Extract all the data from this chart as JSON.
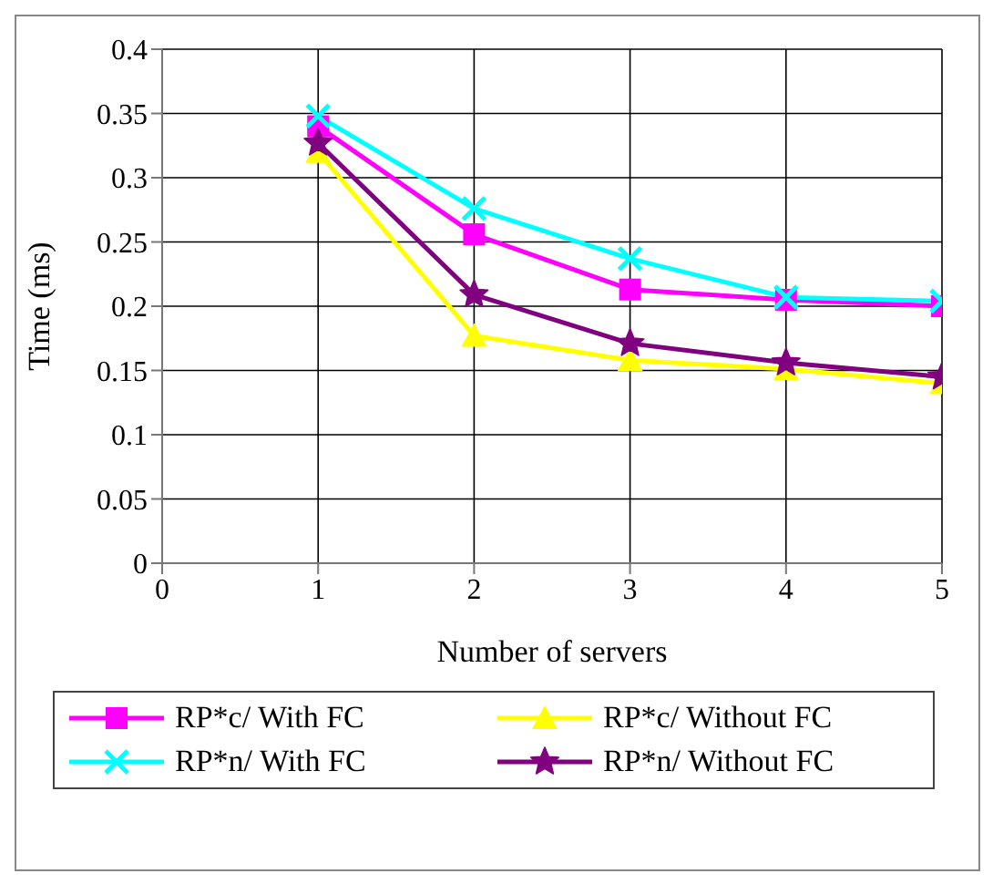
{
  "chart_data": {
    "type": "line",
    "xlabel": "Number of servers",
    "ylabel": "Time (ms)",
    "x": [
      1,
      2,
      3,
      4,
      5
    ],
    "xlim": [
      0,
      5
    ],
    "xticks": [
      0,
      1,
      2,
      3,
      4,
      5
    ],
    "ylim": [
      0,
      0.4
    ],
    "yticks": [
      0,
      0.05,
      0.1,
      0.15,
      0.2,
      0.25,
      0.3,
      0.35,
      0.4
    ],
    "grid": true,
    "legend": "bottom",
    "line_style": "solid",
    "series": [
      {
        "name": "RP*c/ With FC",
        "color": "#ff00ff",
        "marker": "square",
        "values": [
          0.34,
          0.256,
          0.213,
          0.205,
          0.2
        ]
      },
      {
        "name": "RP*c/ Without FC",
        "color": "#ffff00",
        "marker": "triangle",
        "values": [
          0.32,
          0.177,
          0.158,
          0.151,
          0.14
        ]
      },
      {
        "name": "RP*n/ With FC",
        "color": "#00ffff",
        "marker": "cross",
        "values": [
          0.348,
          0.276,
          0.237,
          0.207,
          0.204
        ]
      },
      {
        "name": "RP*n/ Without FC",
        "color": "#800080",
        "marker": "star",
        "values": [
          0.327,
          0.209,
          0.171,
          0.156,
          0.145
        ]
      }
    ]
  }
}
